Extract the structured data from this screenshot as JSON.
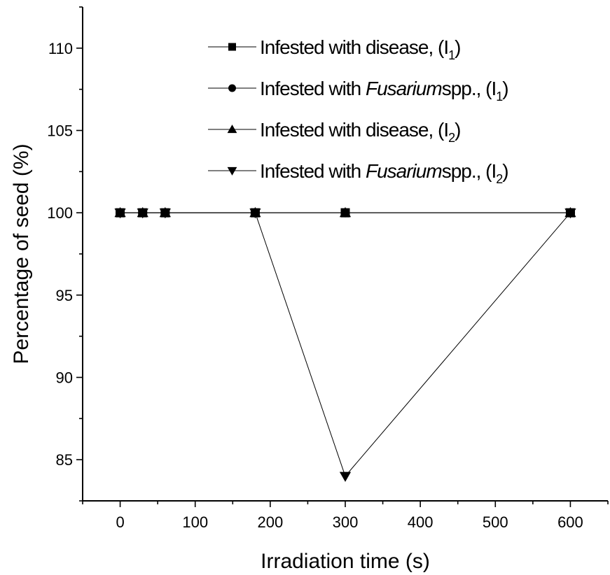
{
  "chart_data": {
    "type": "line",
    "xlabel": "Irradiation time  (s)",
    "ylabel": "Percentage of seed  (%)",
    "xlim": [
      -50,
      650
    ],
    "ylim": [
      82.5,
      112.5
    ],
    "xticks": [
      0,
      100,
      200,
      300,
      400,
      500,
      600
    ],
    "yticks": [
      85,
      90,
      95,
      100,
      105,
      110
    ],
    "x": [
      0,
      30,
      60,
      180,
      300,
      600
    ],
    "legend_position": "top",
    "grid": false,
    "series": [
      {
        "name": "Infested with disease, (I1)",
        "name_parts": {
          "prefix": "Infested with disease, (I",
          "italic": "",
          "suffix": "",
          "subscript": "1",
          "close": ")"
        },
        "marker": "square",
        "values": [
          100,
          100,
          100,
          100,
          100,
          100
        ]
      },
      {
        "name": "Infested with Fusarium spp., (I1)",
        "name_parts": {
          "prefix": "Infested with ",
          "italic": "Fusarium",
          "suffix": "spp., (I",
          "subscript": "1",
          "close": ")"
        },
        "marker": "circle",
        "values": [
          100,
          100,
          100,
          100,
          100,
          100
        ]
      },
      {
        "name": "Infested with disease, (I2)",
        "name_parts": {
          "prefix": "Infested with disease, (I",
          "italic": "",
          "suffix": "",
          "subscript": "2",
          "close": ")"
        },
        "marker": "triangle-up",
        "values": [
          100,
          100,
          100,
          100,
          100,
          100
        ]
      },
      {
        "name": "Infested with Fusarium spp., (I2)",
        "name_parts": {
          "prefix": "Infested with ",
          "italic": "Fusarium",
          "suffix": "spp., (I",
          "subscript": "2",
          "close": ")"
        },
        "marker": "triangle-down",
        "values": [
          100,
          100,
          100,
          100,
          84,
          100
        ]
      }
    ]
  }
}
